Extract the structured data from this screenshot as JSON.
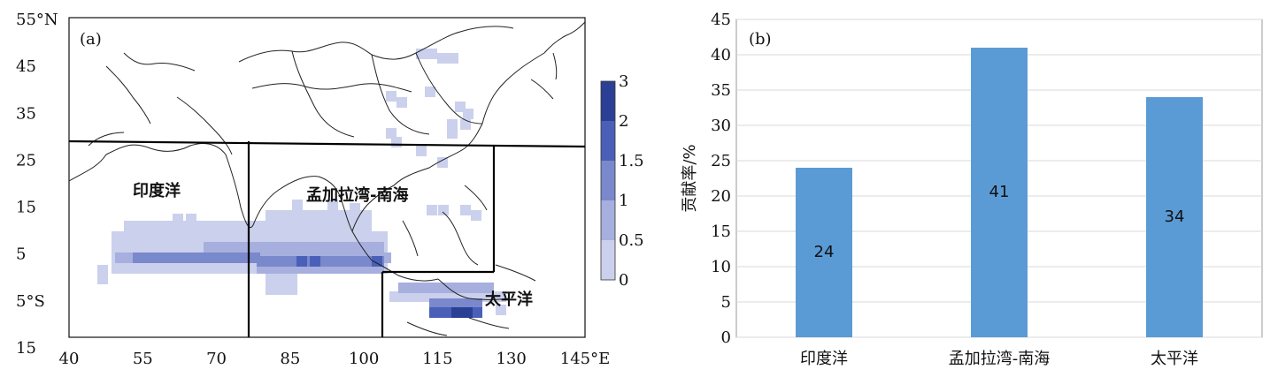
{
  "map": {
    "panel_label": "(a)",
    "lon_ticks": [
      "40",
      "55",
      "70",
      "85",
      "100",
      "115",
      "130",
      "145°E"
    ],
    "lat_ticks": [
      "55°N",
      "45",
      "35",
      "25",
      "15",
      "5",
      "5°S",
      "15"
    ],
    "regions": [
      "印度洋",
      "孟加拉湾-南海",
      "太平洋"
    ],
    "colorbar_ticks": [
      "3",
      "2",
      "1.5",
      "1",
      "0.5",
      "0"
    ],
    "colorbar_colors": [
      "#2b3f95",
      "#4a5fb8",
      "#7a88cc",
      "#a6afde",
      "#cbd0ec"
    ]
  },
  "chart_data": {
    "type": "bar",
    "panel_label": "(b)",
    "categories": [
      "印度洋",
      "孟加拉湾-南海",
      "太平洋"
    ],
    "values": [
      24,
      41,
      34
    ],
    "ylabel": "贡献率/%",
    "ylim": [
      0,
      45
    ],
    "yticks": [
      0,
      5,
      10,
      15,
      20,
      25,
      30,
      35,
      40,
      45
    ],
    "bar_color": "#5b9bd5",
    "grid": true
  }
}
